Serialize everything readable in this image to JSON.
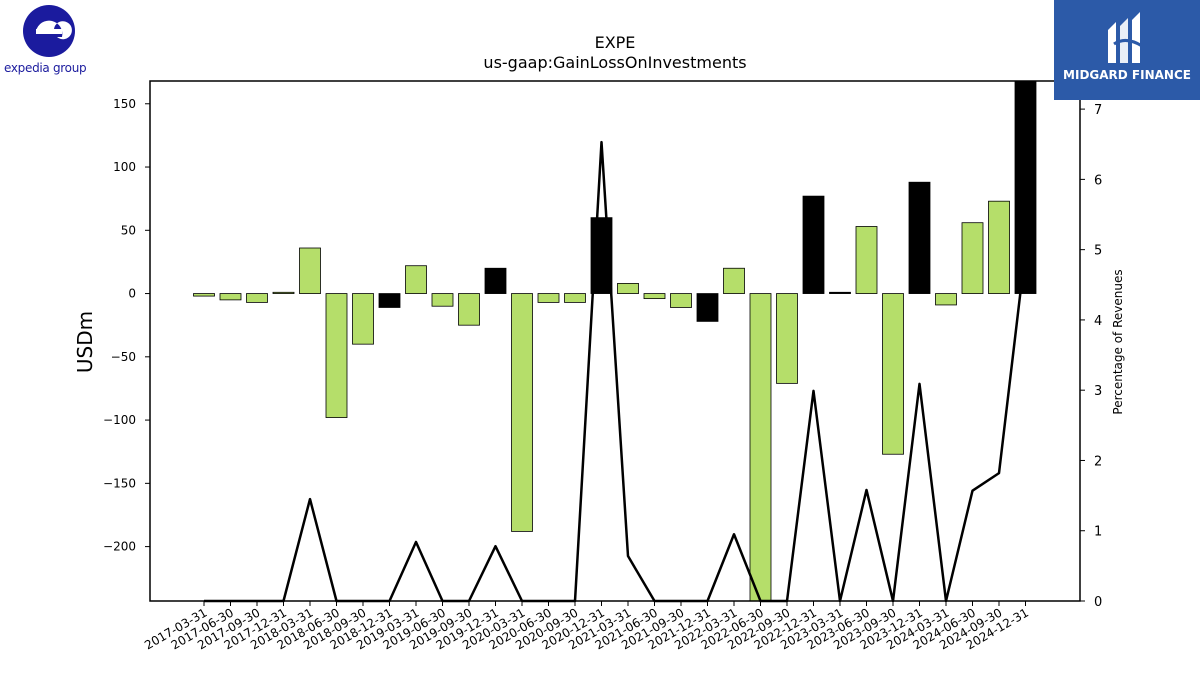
{
  "chart_data": {
    "type": "bar",
    "title": "EXPE",
    "subtitle": "us-gaap:GainLossOnInvestments",
    "ylabel": "USDm",
    "y2label": "Percentage of Revenues",
    "ylim": [
      -243,
      168
    ],
    "y2lim": [
      0,
      7.4
    ],
    "yticks": [
      150,
      100,
      50,
      0,
      -50,
      -100,
      -150,
      -200
    ],
    "y2ticks": [
      0,
      1,
      2,
      3,
      4,
      5,
      6,
      7
    ],
    "grid": false,
    "categories": [
      "2017-03-31",
      "2017-06-30",
      "2017-09-30",
      "2017-12-31",
      "2018-03-31",
      "2018-06-30",
      "2018-09-30",
      "2018-12-31",
      "2019-03-31",
      "2019-06-30",
      "2019-09-30",
      "2019-12-31",
      "2020-03-31",
      "2020-06-30",
      "2020-09-30",
      "2020-12-31",
      "2021-03-31",
      "2021-06-30",
      "2021-09-30",
      "2021-12-31",
      "2022-03-31",
      "2022-06-30",
      "2022-09-30",
      "2022-12-31",
      "2023-03-31",
      "2023-06-30",
      "2023-09-30",
      "2023-12-31",
      "2024-03-31",
      "2024-06-30",
      "2024-09-30",
      "2024-12-31"
    ],
    "values": [
      -2,
      -5,
      -7,
      1,
      36,
      -98,
      -40,
      -11,
      22,
      -10,
      -25,
      20,
      -188,
      -7,
      -7,
      60,
      8,
      -4,
      -11,
      -22,
      20,
      -253,
      -71,
      77,
      1,
      53,
      -127,
      88,
      -9,
      56,
      73,
      170
    ],
    "highlight": [
      false,
      false,
      false,
      false,
      false,
      false,
      false,
      true,
      false,
      false,
      false,
      true,
      false,
      false,
      false,
      true,
      false,
      false,
      false,
      true,
      false,
      false,
      false,
      true,
      true,
      false,
      false,
      true,
      false,
      false,
      false,
      true
    ],
    "series": [
      {
        "type": "line",
        "axis": "right",
        "values": [
          0,
          0,
          0,
          0,
          1.45,
          0,
          0,
          0,
          0.84,
          0,
          0,
          0.78,
          0,
          0,
          0,
          6.53,
          0.64,
          0,
          0,
          0,
          0.95,
          0,
          0,
          2.99,
          0,
          1.58,
          0,
          3.09,
          0,
          1.57,
          1.82,
          5.0
        ]
      }
    ],
    "colors": {
      "positive": "#b5de6a",
      "highlight": "#000000",
      "line": "#000000"
    }
  },
  "branding": {
    "left_logo": {
      "icon": "expedia-e-logo-icon",
      "text": "expedia group",
      "color": "#1b1b9e"
    },
    "right_logo": {
      "icon": "midgard-finance-logo-icon",
      "text": "MIDGARD FINANCE",
      "background": "#2c5aa8"
    }
  }
}
